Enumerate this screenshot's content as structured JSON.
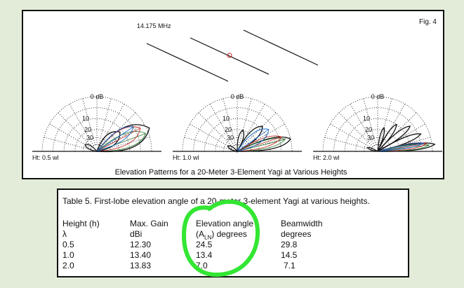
{
  "figure": {
    "label": "Fig. 4",
    "frequency": "14.175 MHz",
    "caption": "Elevation Patterns for a 20-Meter 3-Element Yagi at Various Heights",
    "patterns": [
      {
        "height_label": "Ht: 0.5 wl",
        "scale": [
          "0 dB",
          "10",
          "20",
          "30"
        ]
      },
      {
        "height_label": "Ht: 1.0 wl",
        "scale": [
          "0 dB",
          "10",
          "20",
          "30"
        ]
      },
      {
        "height_label": "Ht: 2.0 wl",
        "scale": [
          "0 dB",
          "10",
          "20",
          "30"
        ]
      }
    ]
  },
  "table": {
    "title": "Table 5.  First-lobe elevation angle of a 20-meter 3-element Yagi at various heights.",
    "headers": [
      {
        "line1": "Height (h)",
        "line2": "λ"
      },
      {
        "line1": "Max. Gain",
        "line2": "dBi"
      },
      {
        "line1": "Elevation angle",
        "line2": "(A",
        "sub": "LN",
        "suffix": ") degrees"
      },
      {
        "line1": "Beamwidth",
        "line2": "degrees"
      }
    ],
    "rows": [
      [
        "0.5",
        "12.30",
        "24.5",
        "29.8"
      ],
      [
        "1.0",
        "13.40",
        "13.4",
        "14.5"
      ],
      [
        "2.0",
        "13.83",
        "7.0",
        "7.1"
      ]
    ]
  },
  "annotation_color": "#33e633"
}
